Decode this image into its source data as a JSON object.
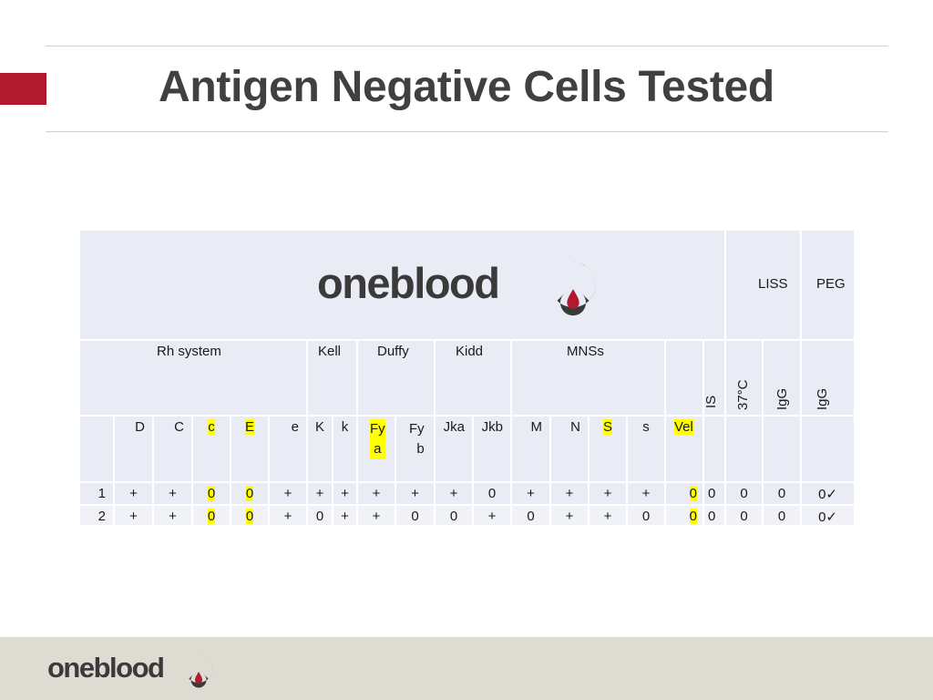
{
  "title": "Antigen Negative Cells Tested",
  "brand": {
    "name": "oneblood",
    "accent_color": "#b0192e",
    "drop_color": "#b0192e"
  },
  "table": {
    "top_headers": {
      "liss": "LISS",
      "peg": "PEG"
    },
    "groups": {
      "rh": "Rh system",
      "kell": "Kell",
      "duffy": "Duffy",
      "kidd": "Kidd",
      "mnss": "MNSs"
    },
    "phase_headers": {
      "is": "IS",
      "t37": "37°C",
      "liss_igg": "IgG",
      "peg_igg": "IgG"
    },
    "antigens": [
      "D",
      "C",
      "c",
      "E",
      "e",
      "K",
      "k",
      "Fya",
      "Fyb",
      "Jka",
      "Jkb",
      "M",
      "N",
      "S",
      "s",
      "Vel"
    ],
    "antigen_display": {
      "fya_top": "Fy",
      "fya_bot": "a",
      "fyb_top": "Fy",
      "fyb_bot": "b"
    },
    "highlighted_antigens": [
      "c",
      "E",
      "Fya",
      "S",
      "Vel"
    ],
    "rows": [
      {
        "cell": "1",
        "values": [
          "+",
          "+",
          "0",
          "0",
          "+",
          "+",
          "+",
          "+",
          "+",
          "+",
          "0",
          "+",
          "+",
          "+",
          "+",
          "0"
        ],
        "is": "0",
        "t37": "0",
        "liss_igg": "0",
        "peg_igg": "0✓"
      },
      {
        "cell": "2",
        "values": [
          "+",
          "+",
          "0",
          "0",
          "+",
          "0",
          "+",
          "+",
          "0",
          "0",
          "+",
          "0",
          "+",
          "+",
          "0",
          "0"
        ],
        "is": "0",
        "t37": "0",
        "liss_igg": "0",
        "peg_igg": "0✓"
      }
    ]
  }
}
